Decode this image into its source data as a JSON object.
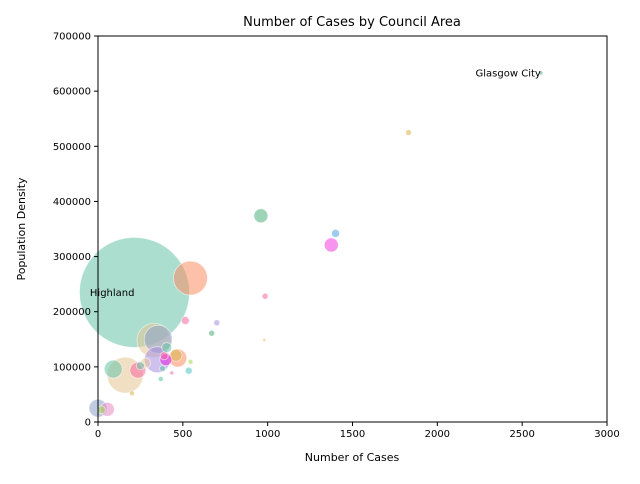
{
  "chart_data": {
    "type": "scatter",
    "title": "Number of Cases by Council Area",
    "xlabel": "Number of Cases",
    "ylabel": "Population Density",
    "xlim": [
      0,
      3000
    ],
    "ylim": [
      0,
      700000
    ],
    "xticks": [
      "0",
      "500",
      "1000",
      "1500",
      "2000",
      "2500",
      "3000"
    ],
    "yticks": [
      "0",
      "100000",
      "200000",
      "300000",
      "400000",
      "500000",
      "600000",
      "700000"
    ],
    "grid": false,
    "legend": "none",
    "annotations": [
      {
        "text": "Glasgow City",
        "x": 2610,
        "y": 633000
      },
      {
        "text": "Highland",
        "x": 215,
        "y": 235000
      }
    ],
    "points": [
      {
        "x": 215,
        "y": 235000,
        "size": 55,
        "color": "#66c2a5"
      },
      {
        "x": 545,
        "y": 261000,
        "size": 17,
        "color": "#fc8d62"
      },
      {
        "x": 160,
        "y": 85000,
        "size": 18,
        "color": "#e5c494"
      },
      {
        "x": 330,
        "y": 148000,
        "size": 17,
        "color": "#e5c494"
      },
      {
        "x": 355,
        "y": 150000,
        "size": 14,
        "color": "#8da0cb"
      },
      {
        "x": 350,
        "y": 113000,
        "size": 13,
        "color": "#a68ee0"
      },
      {
        "x": 470,
        "y": 116000,
        "size": 9,
        "color": "#fc8d62"
      },
      {
        "x": 460,
        "y": 121000,
        "size": 6,
        "color": "#d9b44a"
      },
      {
        "x": 90,
        "y": 96000,
        "size": 9,
        "color": "#66c2a5"
      },
      {
        "x": 235,
        "y": 94000,
        "size": 8,
        "color": "#f768a1"
      },
      {
        "x": 0,
        "y": 25000,
        "size": 9,
        "color": "#8da0cb"
      },
      {
        "x": 55,
        "y": 23000,
        "size": 7,
        "color": "#e78ac3"
      },
      {
        "x": 20,
        "y": 22000,
        "size": 4,
        "color": "#a6d854"
      },
      {
        "x": 400,
        "y": 113000,
        "size": 6,
        "color": "#e01ee0"
      },
      {
        "x": 405,
        "y": 135000,
        "size": 5,
        "color": "#66c2a5"
      },
      {
        "x": 390,
        "y": 120000,
        "size": 4,
        "color": "#f768a1"
      },
      {
        "x": 280,
        "y": 107000,
        "size": 5,
        "color": "#e5c494"
      },
      {
        "x": 250,
        "y": 102000,
        "size": 4,
        "color": "#66c2a5"
      },
      {
        "x": 960,
        "y": 374000,
        "size": 7,
        "color": "#4daf7a"
      },
      {
        "x": 1375,
        "y": 321000,
        "size": 7,
        "color": "#f03ce0"
      },
      {
        "x": 1400,
        "y": 342000,
        "size": 4,
        "color": "#4da3e0"
      },
      {
        "x": 515,
        "y": 184000,
        "size": 4,
        "color": "#f768a1"
      },
      {
        "x": 700,
        "y": 180000,
        "size": 3,
        "color": "#a68ee0"
      },
      {
        "x": 670,
        "y": 161000,
        "size": 3,
        "color": "#4daf7a"
      },
      {
        "x": 985,
        "y": 228000,
        "size": 3,
        "color": "#f768a1"
      },
      {
        "x": 980,
        "y": 149000,
        "size": 1.5,
        "color": "#d9b44a"
      },
      {
        "x": 1830,
        "y": 525000,
        "size": 3,
        "color": "#d9b44a"
      },
      {
        "x": 2610,
        "y": 633000,
        "size": 2,
        "color": "#4daf7a"
      },
      {
        "x": 535,
        "y": 93000,
        "size": 3.5,
        "color": "#4dc2c2"
      },
      {
        "x": 435,
        "y": 89000,
        "size": 2,
        "color": "#f768a1"
      },
      {
        "x": 370,
        "y": 78000,
        "size": 2.5,
        "color": "#4dc2a5"
      },
      {
        "x": 200,
        "y": 52000,
        "size": 2.5,
        "color": "#d9b44a"
      },
      {
        "x": 545,
        "y": 109000,
        "size": 2.5,
        "color": "#a6d854"
      },
      {
        "x": 380,
        "y": 97000,
        "size": 3,
        "color": "#66c2a5"
      }
    ]
  }
}
